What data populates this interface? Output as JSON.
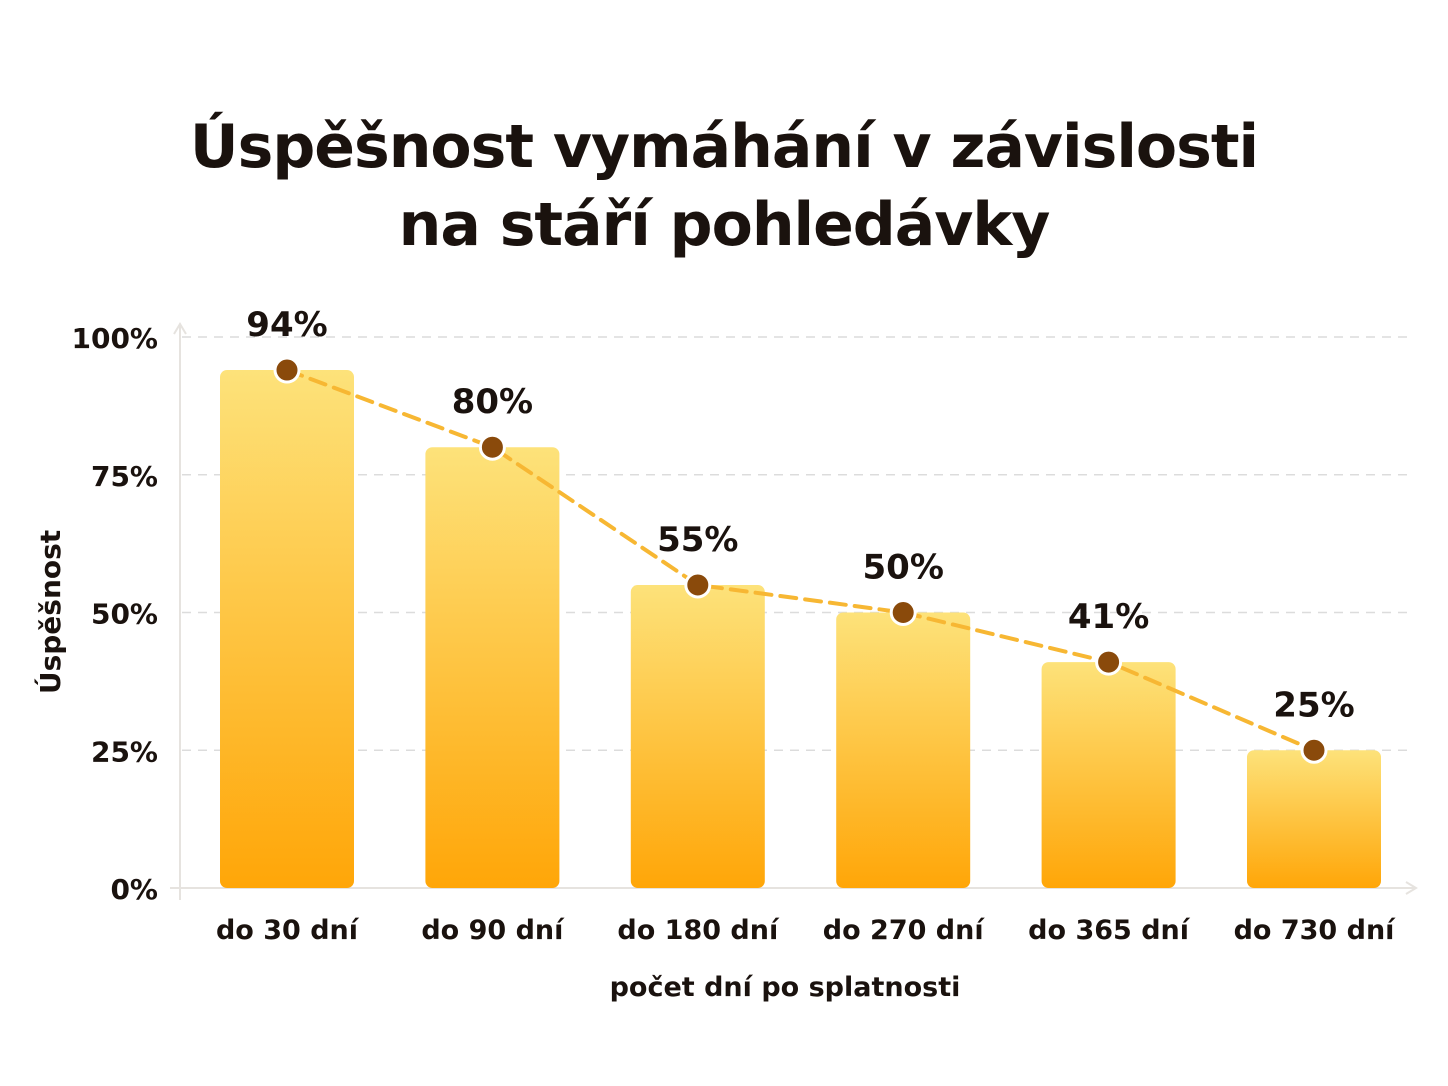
{
  "title_lines": [
    "Úspěšnost vymáhání v závislosti",
    "na stáří pohledávky"
  ],
  "colors": {
    "bar_top": "#fde27a",
    "bar_bottom": "#ffa608",
    "line": "#f7b733",
    "marker": "#8a4a0b",
    "text": "#1a120e",
    "grid": "#dcdcdc"
  },
  "chart_data": {
    "type": "bar",
    "title": "Úspěšnost vymáhání v závislosti na stáří pohledávky",
    "categories": [
      "do 30 dní",
      "do 90 dní",
      "do 180 dní",
      "do 270 dní",
      "do 365 dní",
      "do 730 dní"
    ],
    "values": [
      94,
      80,
      55,
      50,
      41,
      25
    ],
    "data_labels": [
      "94%",
      "80%",
      "55%",
      "50%",
      "41%",
      "25%"
    ],
    "overlay": "line",
    "xlabel": "počet dní po splatnosti",
    "ylabel": "Úspěšnost",
    "ylim": [
      0,
      100
    ],
    "yticks": [
      0,
      25,
      50,
      75,
      100
    ],
    "ytick_labels": [
      "0%",
      "25%",
      "50%",
      "75%",
      "100%"
    ],
    "grid": true,
    "legend": "none"
  }
}
